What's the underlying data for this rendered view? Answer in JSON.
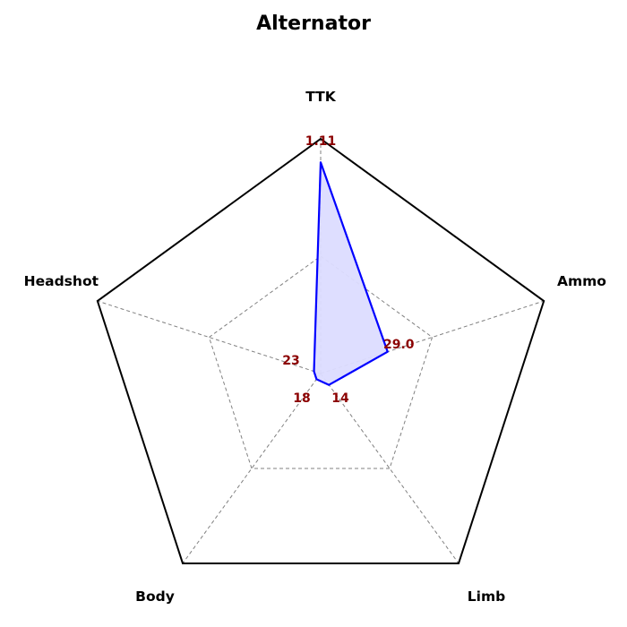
{
  "chart_data": {
    "type": "radar",
    "title": "Alternator",
    "axes": [
      "TTK",
      "Ammo",
      "Limb",
      "Body",
      "Headshot"
    ],
    "series": [
      {
        "values": [
          0.9,
          0.3,
          0.06,
          0.03,
          0.03
        ],
        "value_labels": [
          "1.11",
          "29.0",
          "14",
          "18",
          "23"
        ]
      }
    ],
    "rmax": 1.0,
    "grid_levels": [
      0.5,
      1.0
    ],
    "colors": {
      "series_line": "#0000ff",
      "series_fill": "#dcdcff",
      "grid": "#808080",
      "frame": "#000000",
      "value_text": "#8b0000"
    }
  }
}
